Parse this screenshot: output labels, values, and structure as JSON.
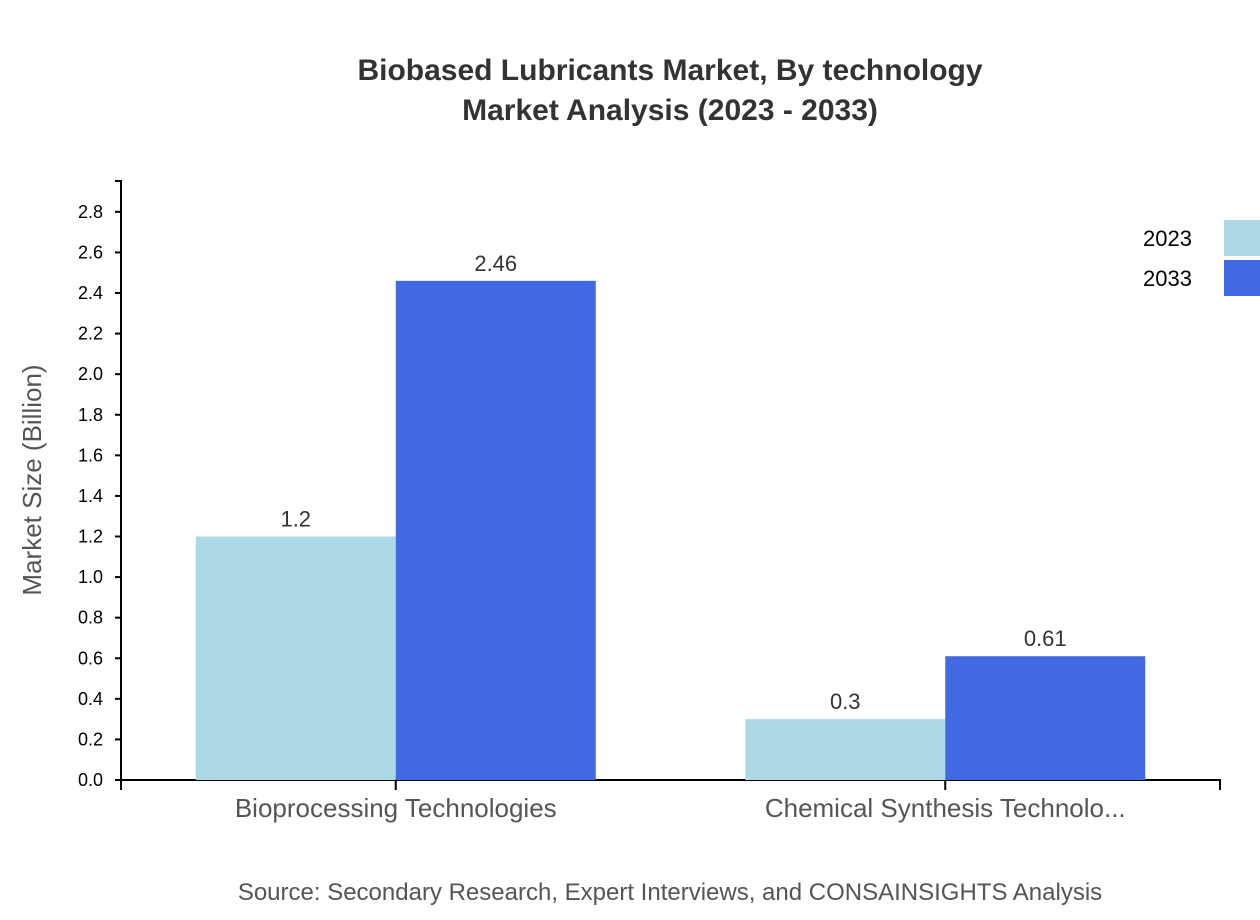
{
  "chart_data": {
    "type": "bar",
    "title": "Biobased Lubricants Market, By technology",
    "subtitle": "Market Analysis (2023 - 2033)",
    "xlabel": "",
    "ylabel": "Market Size (Billion)",
    "categories": [
      "Bioprocessing Technologies",
      "Chemical Synthesis Technolo..."
    ],
    "series": [
      {
        "name": "2023",
        "color": "#add8e6",
        "values": [
          1.2,
          0.3
        ]
      },
      {
        "name": "2033",
        "color": "#4169e1",
        "values": [
          2.46,
          0.61
        ]
      }
    ],
    "ylim": [
      0,
      2.952
    ],
    "yticks": [
      "0.0",
      "0.2",
      "0.4",
      "0.6",
      "0.8",
      "1.0",
      "1.2",
      "1.4",
      "1.6",
      "1.8",
      "2.0",
      "2.2",
      "2.4",
      "2.6",
      "2.8"
    ],
    "grid": false,
    "legend": "top-right",
    "source": "Source: Secondary Research, Expert Interviews, and CONSAINSIGHTS Analysis"
  }
}
